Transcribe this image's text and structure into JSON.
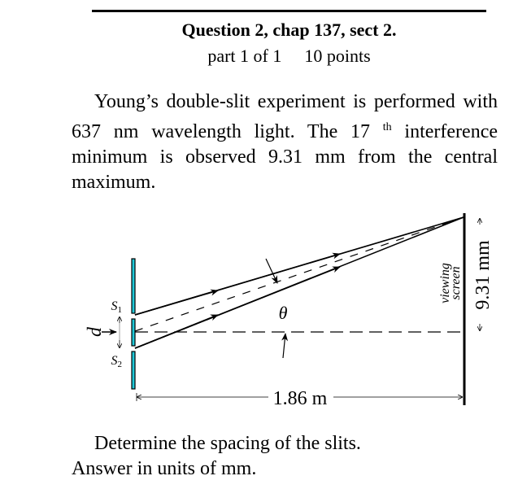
{
  "header": {
    "title": "Question 2, chap 137, sect 2.",
    "part": "part 1 of 1",
    "points": "10 points"
  },
  "problem": {
    "text_before": "Young’s double-slit experiment is performed with 637 nm wavelength light. The 17",
    "ordinal_suffix": "th",
    "text_after": "interference minimum is observed 9.31 mm from the central maximum."
  },
  "diagram": {
    "slit1": "S",
    "slit1_sub": "1",
    "slit2": "S",
    "slit2_sub": "2",
    "d_label": "d",
    "theta_label": "θ",
    "screen_label_1": "viewing",
    "screen_label_2": "screen",
    "distance_label": "1.86 m",
    "height_label": "9.31 mm",
    "slit_color": "#1fc8d8"
  },
  "question": {
    "line1": "Determine the spacing of the slits.",
    "line2": "Answer in units of  mm."
  }
}
